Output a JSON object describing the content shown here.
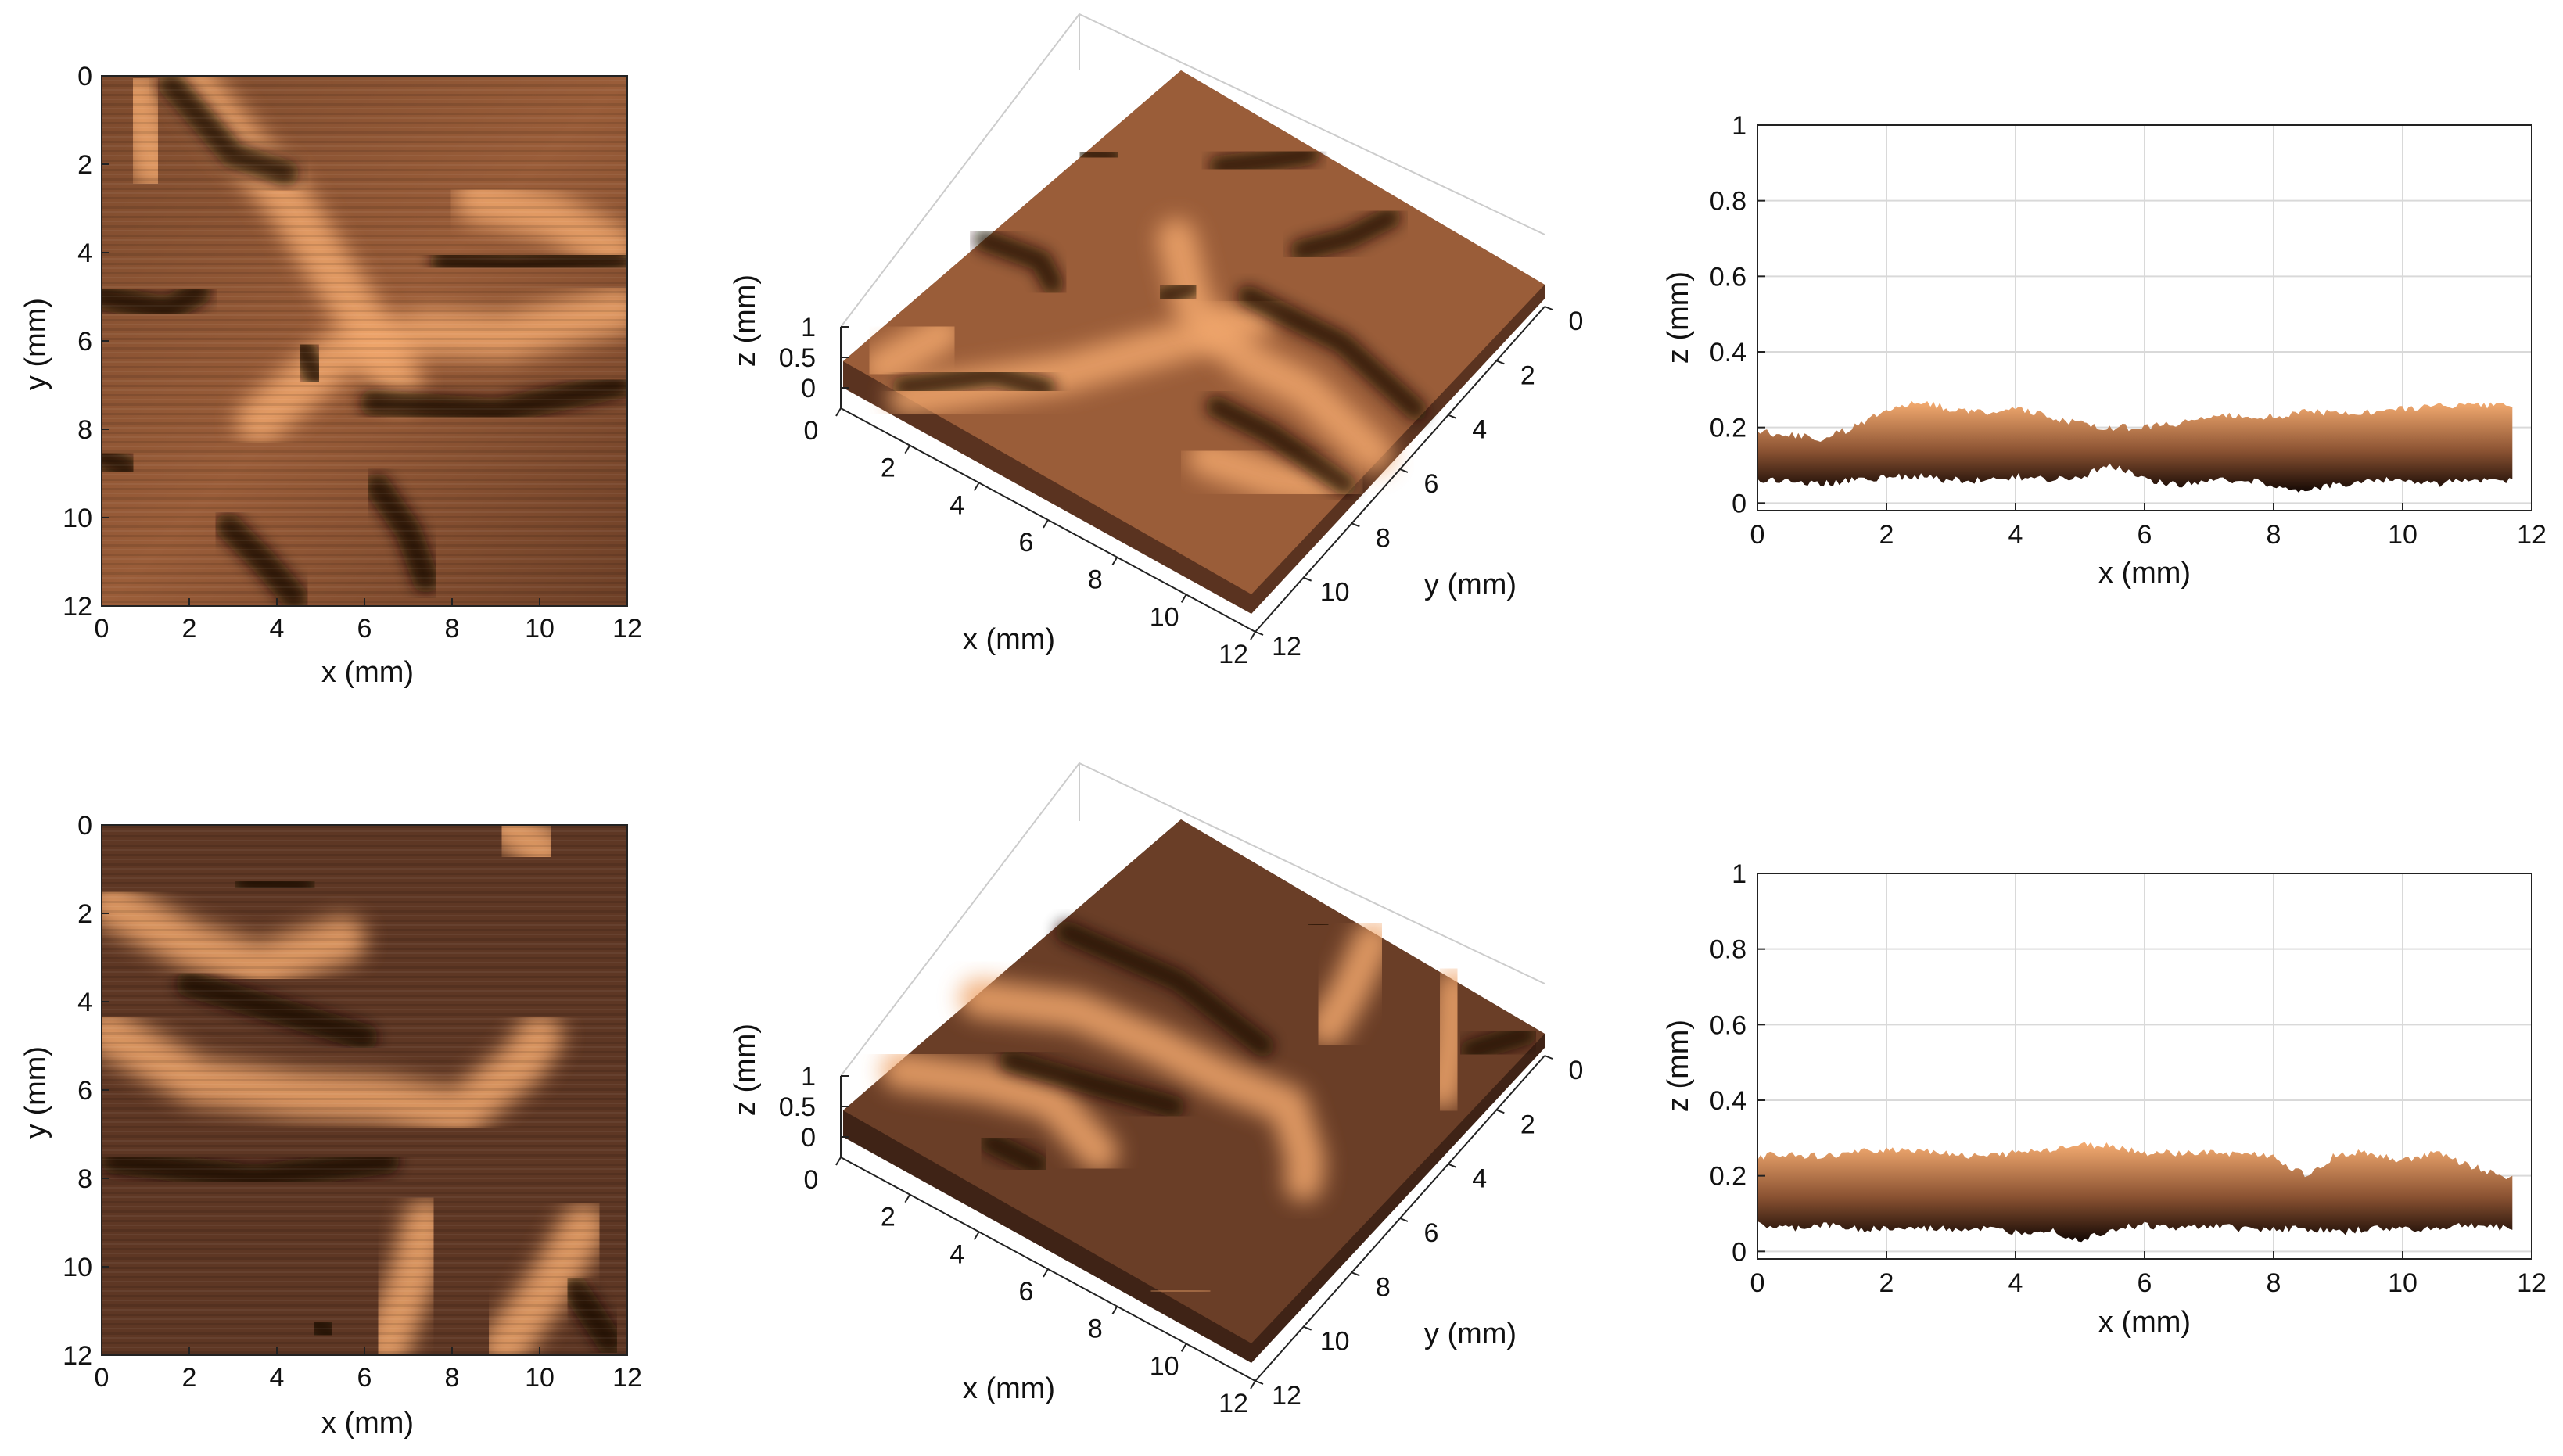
{
  "colors": {
    "copper_dark": "#1a0b04",
    "copper_mid": "#8a5232",
    "copper_light": "#f0a66c",
    "grid": "#d9d9d9",
    "axis": "#222222"
  },
  "colormap": "copper",
  "chart_data": [
    {
      "type": "heatmap",
      "panel": "row1-topview",
      "xlabel": "x (mm)",
      "ylabel": "y (mm)",
      "xlim": [
        0,
        12
      ],
      "ylim": [
        0,
        12
      ],
      "y_reversed": true,
      "xticks": [
        "0",
        "2",
        "4",
        "6",
        "8",
        "10",
        "12"
      ],
      "yticks": [
        "0",
        "2",
        "4",
        "6",
        "8",
        "10",
        "12"
      ],
      "features": {
        "dark_grooves": [
          [
            [
              1.6,
              0.2
            ],
            [
              3.0,
              1.8
            ],
            [
              4.2,
              2.2
            ]
          ],
          [
            [
              7.8,
              4.2
            ],
            [
              9.4,
              4.3
            ],
            [
              11.8,
              4.1
            ]
          ],
          [
            [
              6.2,
              7.4
            ],
            [
              9.0,
              7.6
            ],
            [
              11.8,
              7.0
            ]
          ],
          [
            [
              0.0,
              5.0
            ],
            [
              1.5,
              5.3
            ],
            [
              2.2,
              4.9
            ]
          ],
          [
            [
              6.3,
              9.3
            ],
            [
              7.0,
              10.3
            ],
            [
              7.4,
              11.4
            ]
          ],
          [
            [
              2.9,
              10.2
            ],
            [
              3.7,
              11.0
            ],
            [
              4.4,
              11.8
            ]
          ],
          [
            [
              0.0,
              8.6
            ],
            [
              0.6,
              8.9
            ]
          ],
          [
            [
              4.6,
              6.2
            ],
            [
              4.9,
              6.8
            ]
          ]
        ],
        "light_ridges": [
          [
            [
              1.9,
              0.0
            ],
            [
              4.3,
              2.9
            ],
            [
              6.0,
              5.6
            ],
            [
              6.8,
              7.0
            ]
          ],
          [
            [
              3.6,
              7.8
            ],
            [
              5.4,
              6.3
            ],
            [
              7.5,
              5.8
            ],
            [
              9.2,
              5.9
            ],
            [
              11.8,
              5.3
            ]
          ],
          [
            [
              8.6,
              2.8
            ],
            [
              10.3,
              3.2
            ],
            [
              11.7,
              3.9
            ]
          ],
          [
            [
              0.8,
              0.4
            ],
            [
              1.2,
              2.1
            ]
          ]
        ]
      }
    },
    {
      "type": "surface3d",
      "panel": "row1-3d",
      "xlabel": "x (mm)",
      "ylabel": "y (mm)",
      "zlabel": "z (mm)",
      "xticks": [
        "0",
        "2",
        "4",
        "6",
        "8",
        "10",
        "12"
      ],
      "yticks": [
        "0",
        "2",
        "4",
        "6",
        "8",
        "10",
        "12"
      ],
      "zticks": [
        "0",
        "0.5",
        "1"
      ],
      "zlim": [
        0,
        1
      ]
    },
    {
      "type": "area",
      "panel": "row1-profile",
      "xlabel": "x (mm)",
      "ylabel": "z (mm)",
      "xlim": [
        0,
        12
      ],
      "ylim": [
        -0.02,
        1
      ],
      "grid": true,
      "xticks": [
        "0",
        "2",
        "4",
        "6",
        "8",
        "10",
        "12"
      ],
      "yticks": [
        "0",
        "0.2",
        "0.4",
        "0.6",
        "0.8",
        "1"
      ],
      "x": [
        0,
        0.5,
        1,
        1.5,
        2,
        2.5,
        3,
        3.5,
        4,
        4.5,
        5,
        5.5,
        6,
        6.5,
        7,
        7.5,
        8,
        8.5,
        9,
        9.5,
        10,
        10.5,
        11,
        11.7
      ],
      "upper": [
        0.19,
        0.18,
        0.17,
        0.2,
        0.25,
        0.27,
        0.25,
        0.24,
        0.25,
        0.23,
        0.21,
        0.2,
        0.2,
        0.21,
        0.23,
        0.23,
        0.23,
        0.24,
        0.24,
        0.24,
        0.25,
        0.26,
        0.26,
        0.26
      ],
      "lower": [
        0.06,
        0.06,
        0.05,
        0.06,
        0.07,
        0.07,
        0.06,
        0.06,
        0.07,
        0.06,
        0.07,
        0.1,
        0.06,
        0.05,
        0.06,
        0.06,
        0.05,
        0.03,
        0.05,
        0.06,
        0.06,
        0.05,
        0.06,
        0.06
      ]
    },
    {
      "type": "heatmap",
      "panel": "row2-topview",
      "xlabel": "x (mm)",
      "ylabel": "y (mm)",
      "xlim": [
        0,
        12
      ],
      "ylim": [
        0,
        12
      ],
      "y_reversed": true,
      "xticks": [
        "0",
        "2",
        "4",
        "6",
        "8",
        "10",
        "12"
      ],
      "yticks": [
        "0",
        "2",
        "4",
        "6",
        "8",
        "10",
        "12"
      ],
      "features": {
        "light_ridges": [
          [
            [
              0.2,
              1.8
            ],
            [
              2.0,
              2.7
            ],
            [
              3.6,
              3.2
            ],
            [
              5.5,
              2.6
            ]
          ],
          [
            [
              0.1,
              4.7
            ],
            [
              2.2,
              5.8
            ],
            [
              4.5,
              6.1
            ],
            [
              6.4,
              6.2
            ],
            [
              8.2,
              6.5
            ],
            [
              9.6,
              5.4
            ],
            [
              10.0,
              4.8
            ]
          ],
          [
            [
              6.5,
              11.8
            ],
            [
              7.1,
              10.2
            ],
            [
              7.4,
              9.0
            ]
          ],
          [
            [
              9.2,
              11.8
            ],
            [
              10.3,
              10.3
            ],
            [
              11.0,
              9.1
            ]
          ],
          [
            [
              9.3,
              0.0
            ],
            [
              10.1,
              0.6
            ]
          ]
        ],
        "dark_grooves": [
          [
            [
              2.0,
              3.6
            ],
            [
              4.0,
              4.2
            ],
            [
              6.0,
              4.8
            ]
          ],
          [
            [
              0.3,
              7.6
            ],
            [
              3.5,
              8.0
            ],
            [
              6.5,
              7.6
            ]
          ],
          [
            [
              3.3,
              1.3
            ],
            [
              4.6,
              1.4
            ]
          ],
          [
            [
              10.8,
              10.5
            ],
            [
              11.6,
              11.7
            ]
          ],
          [
            [
              4.9,
              11.3
            ],
            [
              5.2,
              11.5
            ]
          ]
        ]
      }
    },
    {
      "type": "surface3d",
      "panel": "row2-3d",
      "xlabel": "x (mm)",
      "ylabel": "y (mm)",
      "zlabel": "z (mm)",
      "xticks": [
        "0",
        "2",
        "4",
        "6",
        "8",
        "10",
        "12"
      ],
      "yticks": [
        "0",
        "2",
        "4",
        "6",
        "8",
        "10",
        "12"
      ],
      "zticks": [
        "0",
        "0.5",
        "1"
      ],
      "zlim": [
        0,
        1
      ]
    },
    {
      "type": "area",
      "panel": "row2-profile",
      "xlabel": "x (mm)",
      "ylabel": "z (mm)",
      "xlim": [
        0,
        12
      ],
      "ylim": [
        -0.02,
        1
      ],
      "grid": true,
      "xticks": [
        "0",
        "2",
        "4",
        "6",
        "8",
        "10",
        "12"
      ],
      "yticks": [
        "0",
        "0.2",
        "0.4",
        "0.6",
        "0.8",
        "1"
      ],
      "x": [
        0,
        0.5,
        1,
        1.5,
        2,
        2.5,
        3,
        3.5,
        4,
        4.5,
        5,
        5.5,
        6,
        6.5,
        7,
        7.5,
        8,
        8.5,
        9,
        9.5,
        10,
        10.5,
        11,
        11.7
      ],
      "upper": [
        0.25,
        0.26,
        0.25,
        0.26,
        0.27,
        0.27,
        0.26,
        0.25,
        0.26,
        0.27,
        0.28,
        0.28,
        0.26,
        0.26,
        0.26,
        0.26,
        0.25,
        0.2,
        0.26,
        0.26,
        0.24,
        0.26,
        0.23,
        0.19
      ],
      "lower": [
        0.07,
        0.06,
        0.07,
        0.06,
        0.06,
        0.06,
        0.06,
        0.06,
        0.05,
        0.06,
        0.03,
        0.06,
        0.07,
        0.06,
        0.07,
        0.06,
        0.06,
        0.06,
        0.05,
        0.06,
        0.06,
        0.06,
        0.07,
        0.06
      ]
    }
  ]
}
